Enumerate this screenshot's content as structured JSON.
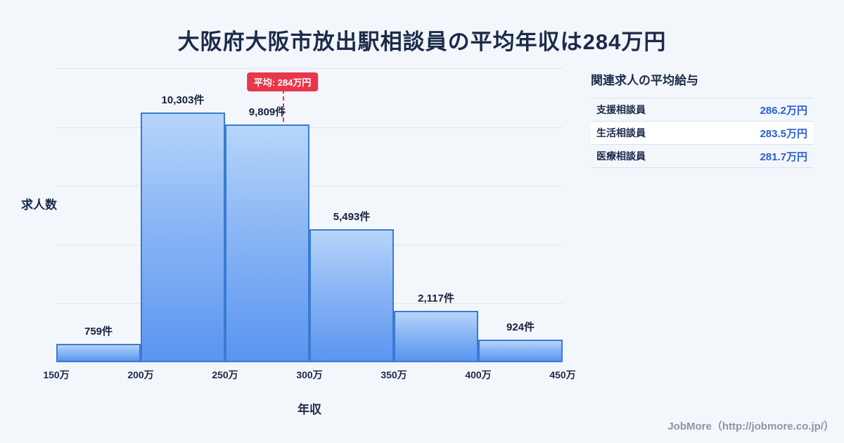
{
  "title": "大阪府大阪市放出駅相談員の平均年収は284万円",
  "chart_data": {
    "type": "bar",
    "subtype": "histogram",
    "xlabel": "年収",
    "ylabel": "求人数",
    "x_tick_labels": [
      "150万",
      "200万",
      "250万",
      "300万",
      "350万",
      "400万",
      "450万"
    ],
    "x_range": [
      150,
      450
    ],
    "values": [
      759,
      10303,
      9809,
      5493,
      2117,
      924
    ],
    "bar_labels": [
      "759件",
      "10,303件",
      "9,809件",
      "5,493件",
      "2,117件",
      "924件"
    ],
    "ylim": [
      0,
      10800
    ],
    "grid": "horizontal",
    "legend": "none",
    "average_marker": {
      "label": "平均: 284万円",
      "value": 284
    }
  },
  "side_panel": {
    "title": "関連求人の平均給与",
    "rows": [
      {
        "label": "支援相談員",
        "value": "286.2万円"
      },
      {
        "label": "生活相談員",
        "value": "283.5万円"
      },
      {
        "label": "医療相談員",
        "value": "281.7万円"
      }
    ]
  },
  "footer": {
    "credit": "JobMore（http://jobmore.co.jp/）"
  },
  "colors": {
    "background": "#f3f7fc",
    "title_navy": "#1c2b4a",
    "bar_fill_top": "#b6d5fa",
    "bar_fill_bottom": "#5b95f0",
    "bar_border": "#3a7bd2",
    "accent_red": "#e8374a",
    "value_blue": "#2a5fd0",
    "gridline": "#dee5ef"
  }
}
